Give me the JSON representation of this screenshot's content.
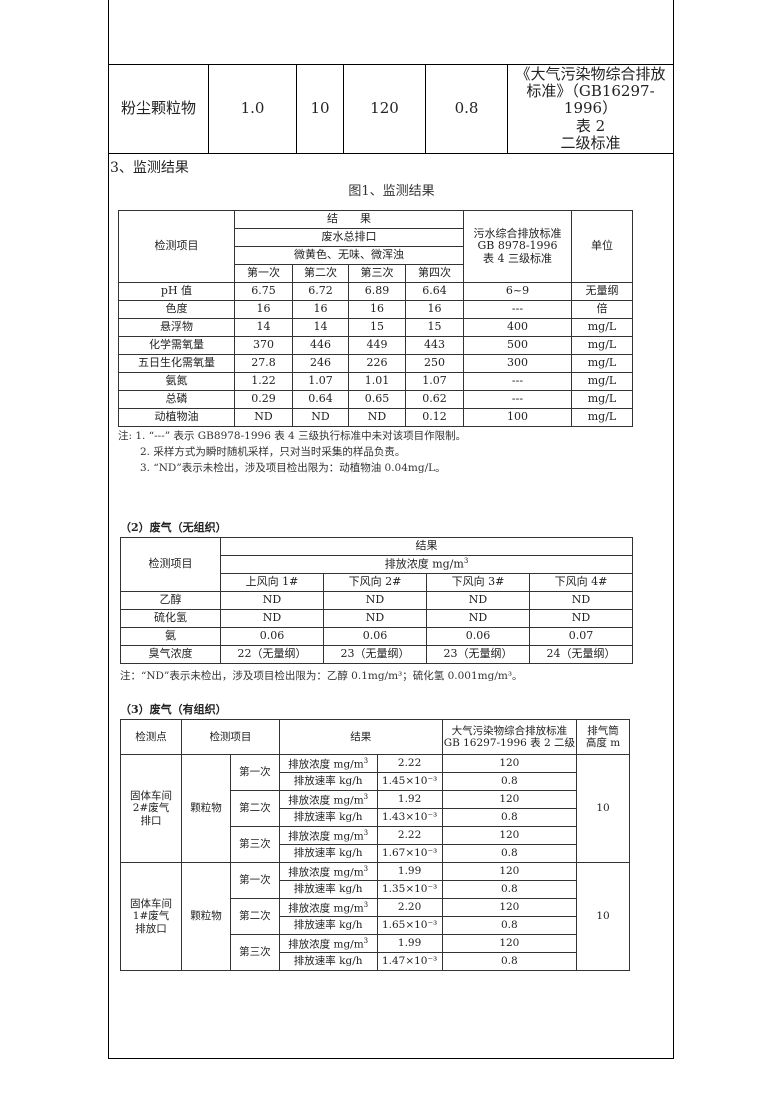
{
  "top_row": {
    "item": "粉尘颗粒物",
    "v1": "1.0",
    "v2": "10",
    "v3": "120",
    "v4": "0.8",
    "standard_l1": "《大气污染物综合排放",
    "standard_l2": "标准》（GB16297-1996）",
    "standard_l3": "表 2",
    "standard_l4": "二级标准"
  },
  "section_title": "3、监测结果",
  "figure_title": "图1、监测结果",
  "t1": {
    "h_item": "检测项目",
    "h_result": "结　　果",
    "h_outlet": "废水总排口",
    "h_desc": "微黄色、无味、微浑浊",
    "h_std_l1": "污水综合排放标准",
    "h_std_l2": "GB 8978-1996",
    "h_std_l3": "表 4  三级标准",
    "h_unit": "单位",
    "h_times": [
      "第一次",
      "第二次",
      "第三次",
      "第四次"
    ],
    "rows": [
      [
        "pH 值",
        "6.75",
        "6.72",
        "6.89",
        "6.64",
        "6~9",
        "无量纲"
      ],
      [
        "色度",
        "16",
        "16",
        "16",
        "16",
        "---",
        "倍"
      ],
      [
        "悬浮物",
        "14",
        "14",
        "15",
        "15",
        "400",
        "mg/L"
      ],
      [
        "化学需氧量",
        "370",
        "446",
        "449",
        "443",
        "500",
        "mg/L"
      ],
      [
        "五日生化需氧量",
        "27.8",
        "246",
        "226",
        "250",
        "300",
        "mg/L"
      ],
      [
        "氨氮",
        "1.22",
        "1.07",
        "1.01",
        "1.07",
        "---",
        "mg/L"
      ],
      [
        "总磷",
        "0.29",
        "0.64",
        "0.65",
        "0.62",
        "---",
        "mg/L"
      ],
      [
        "动植物油",
        "ND",
        "ND",
        "ND",
        "0.12",
        "100",
        "mg/L"
      ]
    ],
    "notes": [
      "注: 1. “---” 表示 GB8978-1996 表 4  三级执行标准中未对该项目作限制。",
      "2. 采样方式为瞬时随机采样，只对当时采集的样品负责。",
      "3. “ND”表示未检出，涉及项目检出限为：动植物油 0.04mg/L。"
    ]
  },
  "t2": {
    "title": "（2）废气（无组织）",
    "h_item": "检测项目",
    "h_result": "结果",
    "h_conc": "排放浓度 mg/m³",
    "h_points": [
      "上风向 1#",
      "下风向 2#",
      "下风向 3#",
      "下风向 4#"
    ],
    "rows": [
      [
        "乙醇",
        "ND",
        "ND",
        "ND",
        "ND"
      ],
      [
        "硫化氢",
        "ND",
        "ND",
        "ND",
        "ND"
      ],
      [
        "氨",
        "0.06",
        "0.06",
        "0.06",
        "0.07"
      ],
      [
        "臭气浓度",
        "22（无量纲）",
        "23（无量纲）",
        "23（无量纲）",
        "24（无量纲）"
      ]
    ],
    "note": "注：“ND”表示未检出，涉及项目检出限为：乙醇 0.1mg/m³；硫化氢 0.001mg/m³。"
  },
  "t3": {
    "title": "（3）废气（有组织）",
    "h_point": "检测点",
    "h_item": "检测项目",
    "h_result": "结果",
    "h_std_l1": "大气污染物综合排放标准",
    "h_std_l2": "GB 16297-1996 表 2 二级",
    "h_height_l1": "排气筒",
    "h_height_l2": "高度 m",
    "groups": [
      {
        "point_l1": "固体车间",
        "point_l2": "2#废气",
        "point_l3": "排口",
        "item": "颗粒物",
        "height": "10",
        "times": [
          {
            "label": "第一次",
            "conc": "2.22",
            "rate": "1.45×10⁻³"
          },
          {
            "label": "第二次",
            "conc": "1.92",
            "rate": "1.43×10⁻³"
          },
          {
            "label": "第三次",
            "conc": "2.22",
            "rate": "1.67×10⁻³"
          }
        ]
      },
      {
        "point_l1": "固体车间",
        "point_l2": "1#废气",
        "point_l3": "排放口",
        "item": "颗粒物",
        "height": "10",
        "times": [
          {
            "label": "第一次",
            "conc": "1.99",
            "rate": "1.35×10⁻³"
          },
          {
            "label": "第二次",
            "conc": "2.20",
            "rate": "1.65×10⁻³"
          },
          {
            "label": "第三次",
            "conc": "1.99",
            "rate": "1.47×10⁻³"
          }
        ]
      }
    ],
    "conc_label": "排放浓度 mg/m³",
    "rate_label": "排放速率 kg/h",
    "std_conc": "120",
    "std_rate": "0.8"
  }
}
